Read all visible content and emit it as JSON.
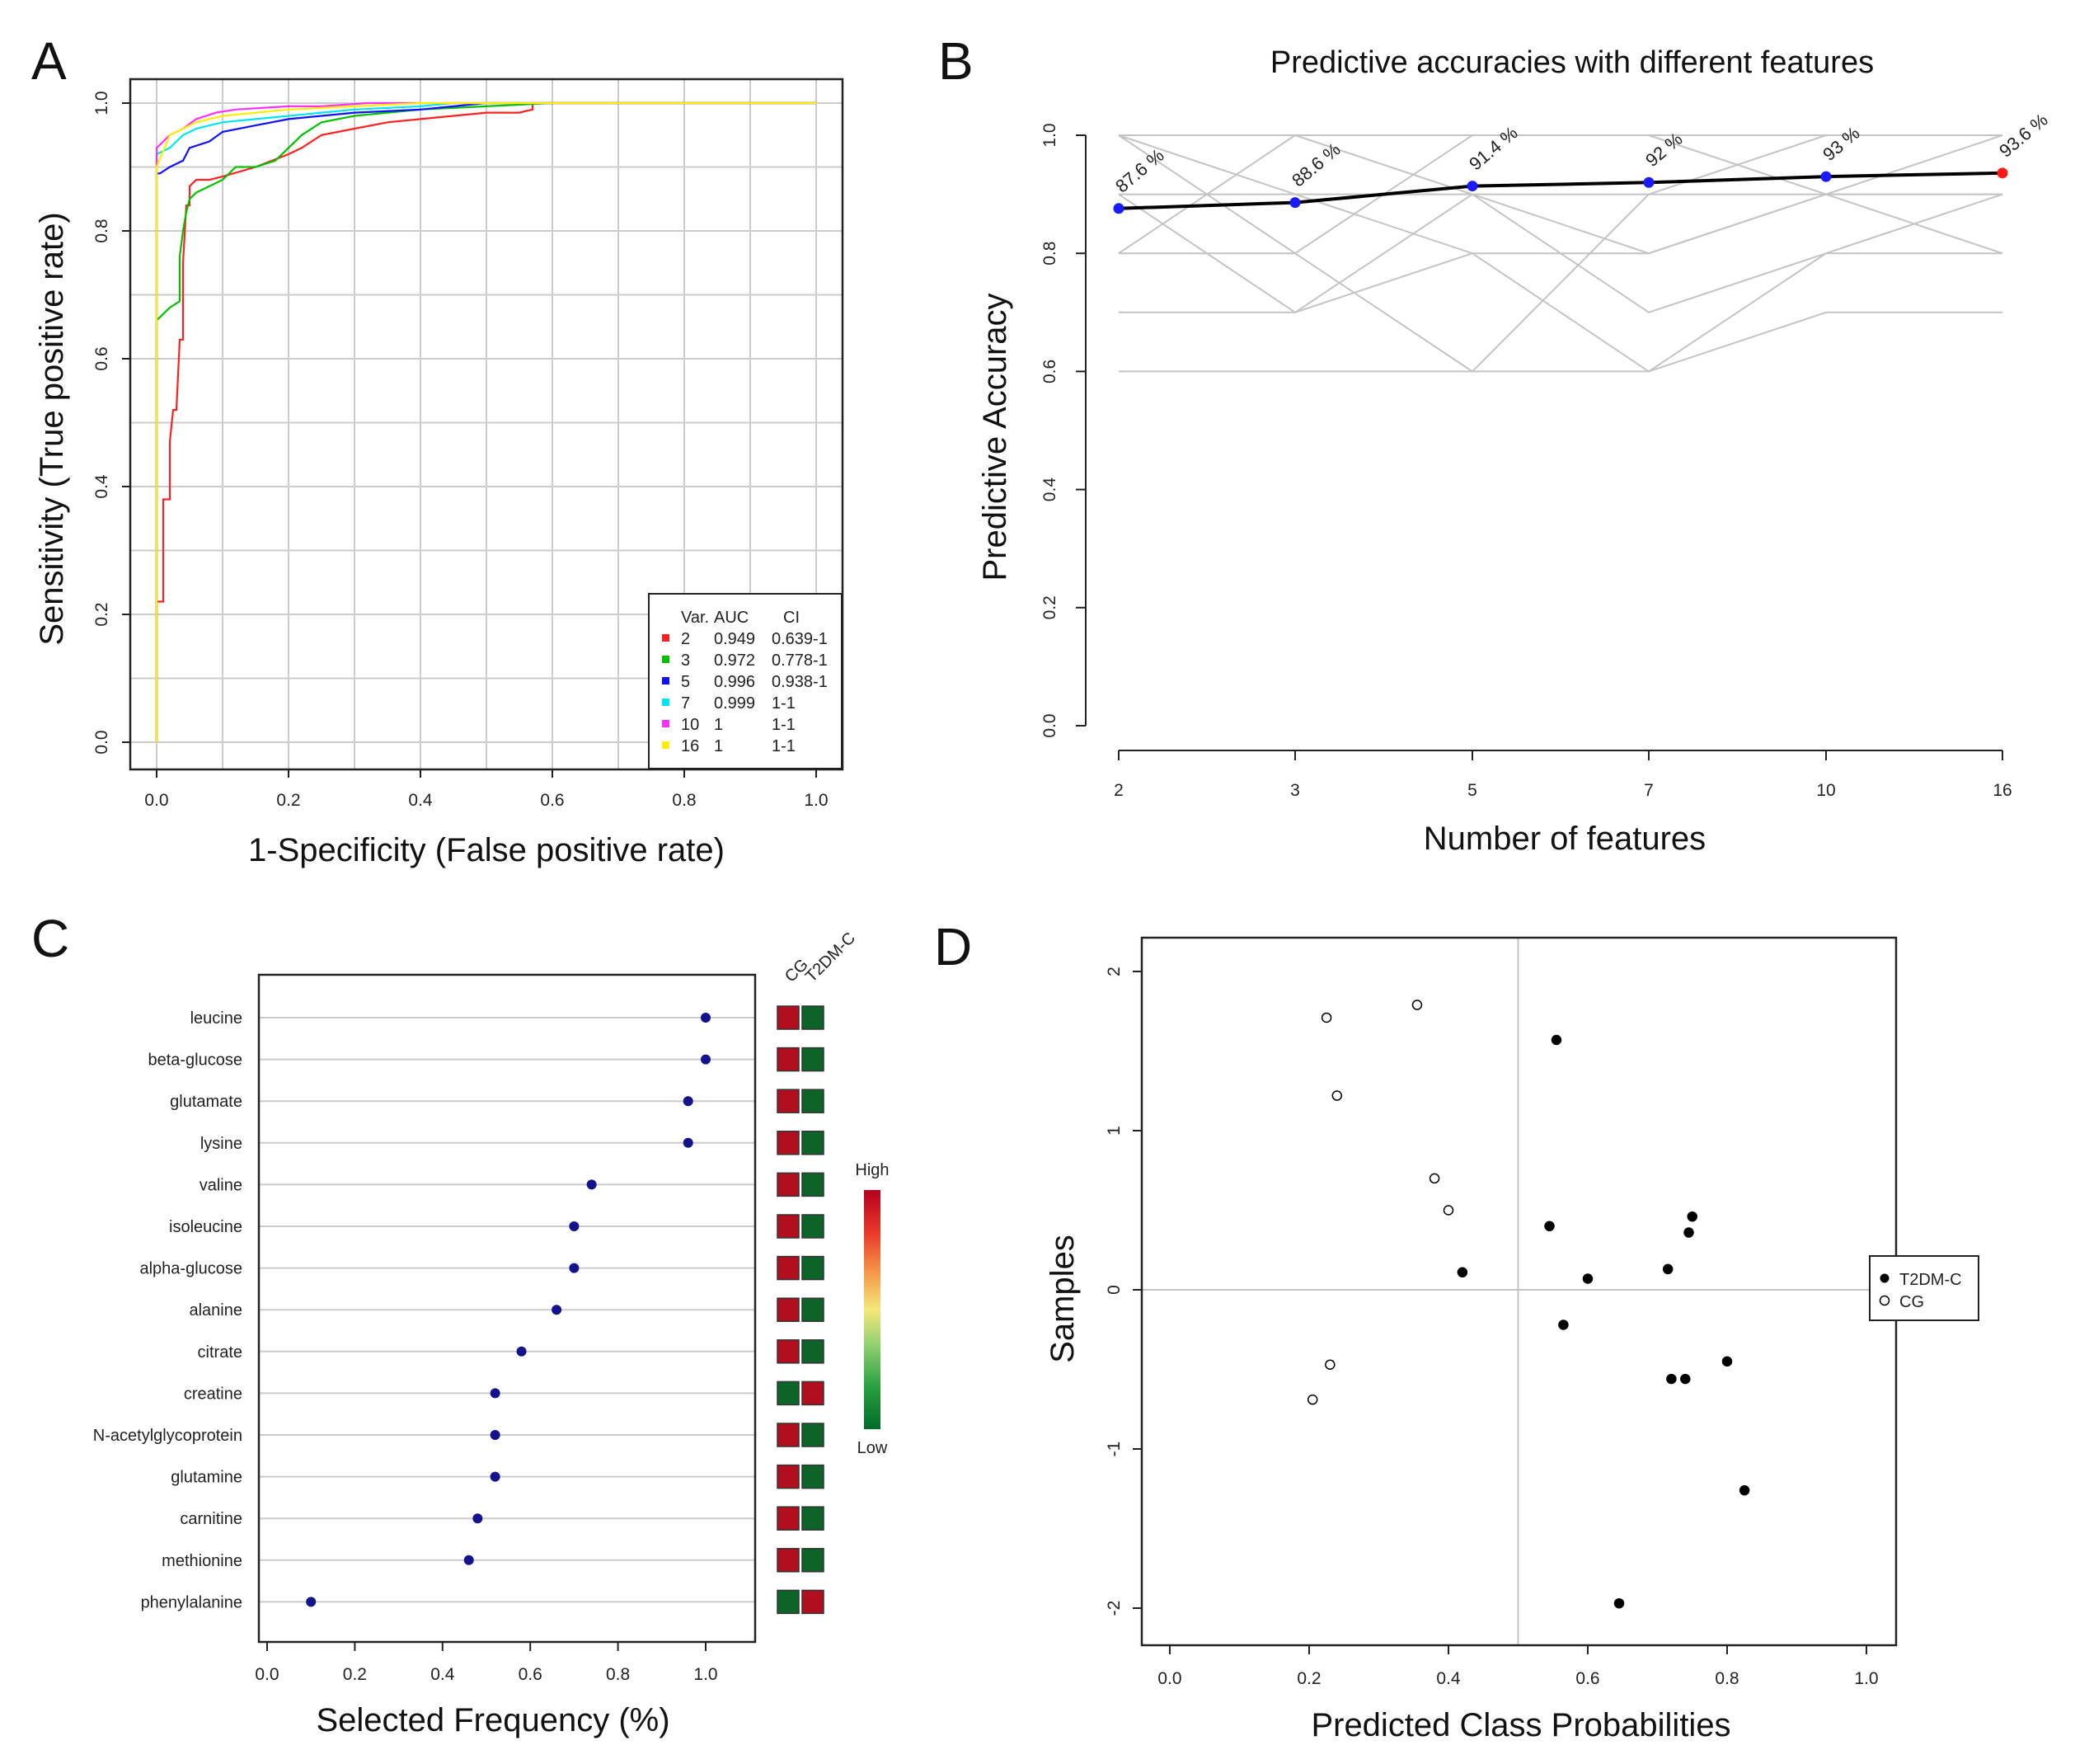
{
  "panels": {
    "a": "A",
    "b": "B",
    "c": "C",
    "d": "D"
  },
  "chart_data": [
    {
      "type": "line",
      "panel": "A",
      "title": "",
      "xlabel": "1-Specificity (False positive rate)",
      "ylabel": "Sensitivity (True positive rate)",
      "xlim": [
        0,
        1
      ],
      "ylim": [
        0,
        1
      ],
      "xticks": [
        "0.0",
        "0.2",
        "0.4",
        "0.6",
        "0.8",
        "1.0"
      ],
      "yticks": [
        "0.0",
        "0.2",
        "0.4",
        "0.6",
        "0.8",
        "1.0"
      ],
      "grid": true,
      "legend": {
        "position": "bottom-right",
        "header": [
          "Var.",
          "AUC",
          "CI"
        ],
        "rows": [
          {
            "var": "2",
            "auc": "0.949",
            "ci": "0.639-1",
            "color": "#ff2020"
          },
          {
            "var": "3",
            "auc": "0.972",
            "ci": "0.778-1",
            "color": "#00c000"
          },
          {
            "var": "5",
            "auc": "0.996",
            "ci": "0.938-1",
            "color": "#1010ff"
          },
          {
            "var": "7",
            "auc": "0.999",
            "ci": "1-1",
            "color": "#00e5ee"
          },
          {
            "var": "10",
            "auc": "1",
            "ci": "1-1",
            "color": "#ff30ff"
          },
          {
            "var": "16",
            "auc": "1",
            "ci": "1-1",
            "color": "#ffee00"
          }
        ]
      },
      "series": [
        {
          "name": "2",
          "color": "#ff2020",
          "x": [
            0.0,
            0.0,
            0.01,
            0.01,
            0.02,
            0.02,
            0.025,
            0.03,
            0.035,
            0.04,
            0.04,
            0.045,
            0.05,
            0.05,
            0.06,
            0.08,
            0.1,
            0.15,
            0.2,
            0.22,
            0.25,
            0.3,
            0.35,
            0.4,
            0.45,
            0.5,
            0.55,
            0.57,
            0.57,
            0.65,
            0.68,
            1.0
          ],
          "y": [
            0.0,
            0.22,
            0.22,
            0.38,
            0.38,
            0.47,
            0.52,
            0.52,
            0.63,
            0.63,
            0.75,
            0.84,
            0.84,
            0.87,
            0.88,
            0.88,
            0.885,
            0.9,
            0.92,
            0.93,
            0.95,
            0.96,
            0.97,
            0.975,
            0.98,
            0.985,
            0.985,
            0.99,
            1.0,
            1.0,
            1.0,
            1.0
          ]
        },
        {
          "name": "3",
          "color": "#00c000",
          "x": [
            0.0,
            0.0,
            0.02,
            0.035,
            0.035,
            0.04,
            0.045,
            0.05,
            0.06,
            0.08,
            0.1,
            0.12,
            0.15,
            0.18,
            0.2,
            0.22,
            0.25,
            0.3,
            0.4,
            0.5,
            0.6,
            0.68,
            1.0
          ],
          "y": [
            0.0,
            0.66,
            0.68,
            0.69,
            0.76,
            0.8,
            0.83,
            0.85,
            0.86,
            0.87,
            0.88,
            0.9,
            0.9,
            0.91,
            0.93,
            0.95,
            0.97,
            0.98,
            0.99,
            0.995,
            1.0,
            1.0,
            1.0
          ]
        },
        {
          "name": "5",
          "color": "#1010ff",
          "x": [
            0.0,
            0.0,
            0.005,
            0.02,
            0.04,
            0.05,
            0.08,
            0.1,
            0.15,
            0.2,
            0.3,
            0.4,
            0.45,
            0.5,
            1.0
          ],
          "y": [
            0.0,
            0.89,
            0.89,
            0.9,
            0.91,
            0.93,
            0.94,
            0.955,
            0.965,
            0.975,
            0.985,
            0.99,
            0.995,
            1.0,
            1.0
          ]
        },
        {
          "name": "7",
          "color": "#00e5ee",
          "x": [
            0.0,
            0.0,
            0.02,
            0.04,
            0.06,
            0.1,
            0.15,
            0.2,
            0.3,
            0.4,
            0.45,
            1.0
          ],
          "y": [
            0.0,
            0.92,
            0.93,
            0.95,
            0.96,
            0.97,
            0.975,
            0.98,
            0.99,
            0.995,
            1.0,
            1.0
          ]
        },
        {
          "name": "10",
          "color": "#ff30ff",
          "x": [
            0.0,
            0.0,
            0.02,
            0.04,
            0.06,
            0.09,
            0.12,
            0.2,
            0.25,
            0.32,
            1.0
          ],
          "y": [
            0.0,
            0.93,
            0.95,
            0.96,
            0.975,
            0.985,
            0.99,
            0.995,
            0.995,
            1.0,
            1.0
          ]
        },
        {
          "name": "16",
          "color": "#ffee00",
          "x": [
            0.0,
            0.0,
            0.02,
            0.06,
            0.1,
            0.2,
            0.3,
            0.4,
            1.0
          ],
          "y": [
            0.0,
            0.9,
            0.95,
            0.97,
            0.98,
            0.99,
            0.995,
            1.0,
            1.0
          ]
        }
      ]
    },
    {
      "type": "line",
      "panel": "B",
      "title": "Predictive accuracies with different features",
      "xlabel": "Number of features",
      "ylabel": "Predictive Accuracy",
      "categories": [
        "2",
        "3",
        "5",
        "7",
        "10",
        "16"
      ],
      "values": [
        0.876,
        0.886,
        0.914,
        0.92,
        0.93,
        0.936
      ],
      "data_labels": [
        "87.6 %",
        "88.6 %",
        "91.4 %",
        "92 %",
        "93 %",
        "93.6 %"
      ],
      "highlight_index": 5,
      "ylim": [
        0,
        1
      ],
      "yticks": [
        "0.0",
        "0.2",
        "0.4",
        "0.6",
        "0.8",
        "1.0"
      ],
      "background_lines": [
        [
          0.6,
          0.6,
          0.6,
          0.6,
          0.7,
          0.7
        ],
        [
          0.7,
          0.7,
          0.9,
          0.8,
          0.9,
          0.9
        ],
        [
          0.8,
          0.8,
          1.0,
          1.0,
          0.9,
          0.8
        ],
        [
          0.9,
          0.9,
          0.9,
          0.9,
          1.0,
          1.0
        ],
        [
          1.0,
          1.0,
          1.0,
          1.0,
          1.0,
          1.0
        ],
        [
          0.8,
          1.0,
          0.9,
          0.7,
          0.8,
          0.8
        ],
        [
          1.0,
          0.8,
          0.6,
          0.9,
          0.9,
          1.0
        ],
        [
          0.9,
          0.7,
          0.8,
          0.6,
          0.8,
          0.9
        ],
        [
          1.0,
          0.9,
          0.8,
          0.8,
          0.9,
          0.9
        ]
      ]
    },
    {
      "type": "scatter",
      "panel": "C",
      "xlabel": "Selected Frequency (%)",
      "ylabel": "",
      "xlim": [
        0,
        1.1
      ],
      "xticks": [
        "0.0",
        "0.2",
        "0.4",
        "0.6",
        "0.8",
        "1.0"
      ],
      "features": [
        "leucine",
        "beta-glucose",
        "glutamate",
        "lysine",
        "valine",
        "isoleucine",
        "alpha-glucose",
        "alanine",
        "citrate",
        "creatine",
        "N-acetylglycoprotein",
        "glutamine",
        "carnitine",
        "methionine",
        "phenylalanine"
      ],
      "values": [
        1.0,
        1.0,
        0.96,
        0.96,
        0.74,
        0.7,
        0.7,
        0.66,
        0.58,
        0.52,
        0.52,
        0.52,
        0.48,
        0.46,
        0.1
      ],
      "heatmap_columns": [
        "CG",
        "T2DM-C"
      ],
      "heatmap_levels": [
        "high",
        "low",
        "high",
        "low",
        "high",
        "low",
        "high",
        "low",
        "high",
        "low",
        "high",
        "low",
        "high",
        "low",
        "high",
        "low",
        "high",
        "low",
        "low",
        "high",
        "high",
        "low",
        "high",
        "low",
        "high",
        "low",
        "high",
        "low",
        "low",
        "high"
      ],
      "colorbar": {
        "high_label": "High",
        "low_label": "Low"
      }
    },
    {
      "type": "scatter",
      "panel": "D",
      "xlabel": "Predicted Class Probabilities",
      "ylabel": "Samples",
      "xlim": [
        -0.04,
        1.04
      ],
      "ylim": [
        -2.22,
        2.22
      ],
      "xticks": [
        "0.0",
        "0.2",
        "0.4",
        "0.6",
        "0.8",
        "1.0"
      ],
      "yticks": [
        "-2",
        "-1",
        "0",
        "1",
        "2"
      ],
      "reference_x": 0.5,
      "reference_y": 0,
      "legend": {
        "position": "right",
        "entries": [
          "T2DM-C",
          "CG"
        ]
      },
      "series": [
        {
          "name": "T2DM-C",
          "x": [
            0.42,
            0.545,
            0.555,
            0.565,
            0.6,
            0.645,
            0.715,
            0.72,
            0.74,
            0.745,
            0.75,
            0.8,
            0.825
          ],
          "y": [
            0.11,
            0.4,
            1.57,
            -0.22,
            0.07,
            -1.97,
            0.13,
            -0.56,
            -0.56,
            0.36,
            0.46,
            -0.45,
            -1.26
          ]
        },
        {
          "name": "CG",
          "x": [
            0.205,
            0.225,
            0.23,
            0.24,
            0.355,
            0.38,
            0.4
          ],
          "y": [
            -0.69,
            1.71,
            -0.47,
            1.22,
            1.79,
            0.7,
            0.5
          ]
        }
      ]
    }
  ]
}
